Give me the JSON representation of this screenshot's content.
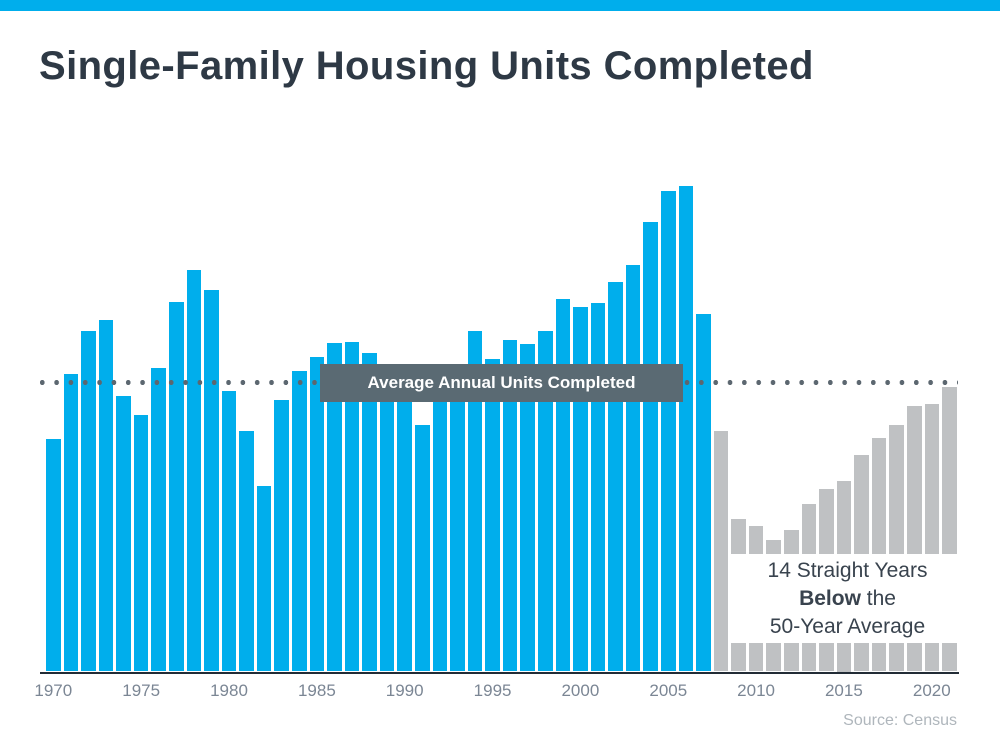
{
  "header": {
    "title": "Single-Family Housing Units Completed"
  },
  "footer": {
    "source": "Source: Census"
  },
  "colors": {
    "accent_blue": "#00AEEC",
    "completed_bar": "#00AEEC",
    "below_average_bar": "#BFC1C3",
    "average_line_dots": "#5C6770",
    "average_label_bg": "#5A6A73",
    "average_label_text": "#FFFFFF",
    "title_text": "#2E3945",
    "axis_tick_text": "#7B8694",
    "annotation_text": "#39434E",
    "source_text": "#AFB6BC",
    "axis_line": "#222C36"
  },
  "chart_data": {
    "type": "bar",
    "title": "Single-Family Housing Units Completed",
    "xlabel": "",
    "ylabel": "",
    "units": "thousands of single-family housing units completed per year",
    "x": [
      1970,
      1971,
      1972,
      1973,
      1974,
      1975,
      1976,
      1977,
      1978,
      1979,
      1980,
      1981,
      1982,
      1983,
      1984,
      1985,
      1986,
      1987,
      1988,
      1989,
      1990,
      1991,
      1992,
      1993,
      1994,
      1995,
      1996,
      1997,
      1998,
      1999,
      2000,
      2001,
      2002,
      2003,
      2004,
      2005,
      2006,
      2007,
      2008,
      2009,
      2010,
      2011,
      2012,
      2013,
      2014,
      2015,
      2016,
      2017,
      2018,
      2019,
      2020,
      2021
    ],
    "values": [
      793,
      1014,
      1160,
      1197,
      940,
      875,
      1034,
      1258,
      1369,
      1301,
      957,
      819,
      632,
      924,
      1025,
      1072,
      1120,
      1123,
      1085,
      1026,
      966,
      838,
      964,
      1039,
      1160,
      1066,
      1129,
      1116,
      1160,
      1270,
      1242,
      1256,
      1325,
      1386,
      1532,
      1636,
      1654,
      1218,
      819,
      520,
      496,
      447,
      483,
      569,
      620,
      648,
      738,
      795,
      840,
      903,
      912,
      970
    ],
    "xticks": [
      1970,
      1975,
      1980,
      1985,
      1990,
      1995,
      2000,
      2005,
      2010,
      2015,
      2020
    ],
    "ylim": [
      0,
      1700
    ],
    "grid": false,
    "legend": "none",
    "below_average_since": 2008,
    "average_line": {
      "label": "Average Annual Units Completed",
      "value": 985,
      "style": "dotted"
    },
    "annotation": {
      "line1": "14 Straight Years",
      "line2_bold": "Below",
      "line2_rest": " the",
      "line3": "50-Year Average"
    },
    "source": "Source: Census"
  }
}
